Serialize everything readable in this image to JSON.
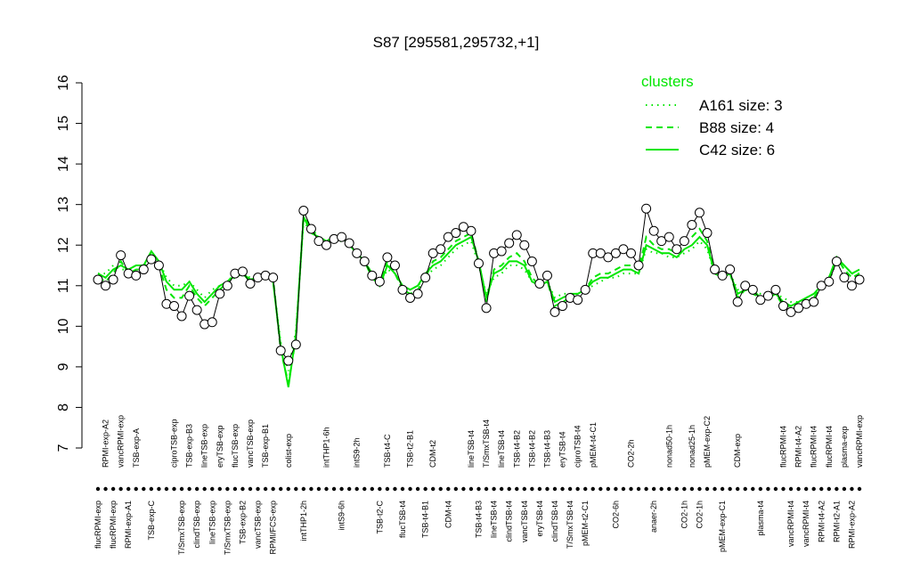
{
  "chart_data": {
    "type": "line",
    "title": "S87 [295581,295732,+1]",
    "categories": [
      "flucRPMI-exp",
      "RPMI-exp-A2",
      "flucRPMI-exp",
      "vancRPMI-exp",
      "RPMI-exp-A1",
      "TSB-exp-A",
      null,
      "TSB-exp-C",
      null,
      null,
      "ciproTSB-exp",
      "T/SmxTSB-exp",
      "TSB-exp-B3",
      "clindTSB-exp",
      "lineTSB-exp",
      "lineTSB-exp",
      "eryTSB-exp",
      "T/SmxTSB-exp",
      "flucTSB-exp",
      "TSB-exp-B2",
      "vancTSB-exp",
      "vancTSB-exp",
      "TSB-exp-B1",
      "RPMI/FCS-exp",
      null,
      "colist-exp",
      null,
      "intTHP1-2h",
      null,
      null,
      "intTHP1-6h",
      null,
      "intS9-6h",
      null,
      "intS9-2h",
      null,
      null,
      "TSB-t2-C",
      "TSB-t4-C",
      null,
      "flucTSB-t4",
      "TSB-t2-B1",
      null,
      "TSB-t4-B1",
      "CDM-t2",
      null,
      "CDM-t4",
      null,
      null,
      "lineTSB-t4",
      "TSB-t4-B3",
      "T/SmxTSB-t4",
      "lineTSB-t4",
      "lineTSB-t4",
      "clindTSB-t4",
      "TSB-t4-B2",
      "vancTSB-t4",
      "TSB-t4-B2",
      "eryTSB-t4",
      "TSB-t4-B3",
      "clindTSB-t4",
      "eryTSB-t4",
      "T/SmxTSB-t4",
      "ciproTSB-t4",
      "pMEM-t2-C1",
      "pMEM-t4-C1",
      null,
      null,
      "CO2-6h",
      null,
      "CO2-2h",
      null,
      null,
      "anaer-2h",
      null,
      "nonad50-1h",
      null,
      "CO2-1h",
      "nonad25-1h",
      "CO2-1h",
      "pMEM-exp-C2",
      null,
      "pMEM-exp-C1",
      null,
      "CDM-exp",
      null,
      null,
      "plasma-t4",
      null,
      null,
      "flucRPMI-t4",
      "vancRPMI-t4",
      "RPMI-t4-A2",
      "vancRPMI-t4",
      "flucRPMI-t4",
      "RPMI-t4-A2",
      "flucRPMI-t4",
      "RPMI-t2-A1",
      "plasma-exp",
      "RPMI-exp-A2",
      "vancRPMI-exp"
    ],
    "values": [
      11.15,
      11.0,
      11.15,
      11.75,
      11.3,
      11.25,
      11.4,
      11.65,
      11.5,
      10.55,
      10.5,
      10.25,
      10.75,
      10.4,
      10.05,
      10.1,
      10.8,
      11.0,
      11.3,
      11.35,
      11.05,
      11.2,
      11.25,
      11.2,
      9.4,
      9.15,
      9.55,
      12.85,
      12.4,
      12.1,
      12.0,
      12.15,
      12.2,
      12.05,
      11.8,
      11.6,
      11.25,
      11.1,
      11.7,
      11.5,
      10.9,
      10.7,
      10.8,
      11.2,
      11.8,
      11.9,
      12.2,
      12.3,
      12.45,
      12.35,
      11.55,
      10.45,
      11.8,
      11.85,
      12.05,
      12.25,
      12.0,
      11.6,
      11.05,
      11.25,
      10.35,
      10.5,
      10.7,
      10.65,
      10.9,
      11.8,
      11.8,
      11.7,
      11.8,
      11.9,
      11.8,
      11.5,
      12.9,
      12.35,
      12.1,
      12.2,
      11.9,
      12.1,
      12.5,
      12.8,
      12.3,
      11.4,
      11.25,
      11.4,
      10.6,
      11.0,
      10.9,
      10.65,
      10.75,
      10.9,
      10.5,
      10.35,
      10.45,
      10.55,
      10.6,
      11.0,
      11.1,
      11.6,
      11.2,
      11.0,
      11.15
    ],
    "series": [
      {
        "name": "A161 size: 3",
        "color": "#00e600",
        "dash": "dotted",
        "values": [
          11.3,
          11.3,
          11.5,
          11.4,
          11.4,
          11.5,
          11.5,
          11.8,
          11.6,
          11.2,
          11.0,
          11.0,
          11.1,
          10.9,
          10.7,
          10.9,
          11.0,
          11.1,
          11.2,
          11.3,
          11.2,
          11.2,
          11.2,
          11.1,
          9.6,
          8.9,
          9.9,
          12.6,
          12.3,
          12.2,
          12.1,
          12.1,
          12.1,
          12.0,
          11.8,
          11.6,
          11.2,
          11.0,
          11.4,
          11.3,
          11.0,
          10.9,
          11.0,
          11.2,
          11.4,
          11.5,
          11.7,
          11.9,
          12.0,
          12.1,
          11.5,
          10.8,
          11.2,
          11.3,
          11.5,
          11.5,
          11.4,
          11.1,
          11.0,
          11.1,
          10.7,
          10.8,
          10.8,
          10.8,
          10.9,
          11.0,
          11.1,
          11.2,
          11.2,
          11.3,
          11.3,
          11.3,
          11.9,
          11.8,
          11.8,
          11.7,
          11.7,
          11.8,
          11.9,
          12.1,
          11.9,
          11.3,
          11.2,
          11.3,
          10.9,
          10.9,
          10.9,
          10.8,
          10.7,
          10.8,
          10.7,
          10.6,
          10.6,
          10.7,
          10.8,
          11.0,
          11.1,
          11.6,
          11.5,
          11.3,
          11.3
        ]
      },
      {
        "name": "B88 size: 4",
        "color": "#00e600",
        "dash": "dashed",
        "values": [
          11.2,
          11.1,
          11.3,
          11.6,
          11.3,
          11.4,
          11.4,
          11.8,
          11.5,
          10.9,
          10.7,
          10.7,
          11.0,
          10.7,
          10.5,
          10.7,
          10.9,
          11.1,
          11.3,
          11.3,
          11.1,
          11.2,
          11.3,
          11.2,
          9.4,
          8.6,
          9.7,
          12.8,
          12.4,
          12.2,
          12.1,
          12.2,
          12.2,
          12.0,
          11.8,
          11.6,
          11.3,
          11.0,
          11.6,
          11.3,
          10.9,
          10.8,
          10.9,
          11.2,
          11.6,
          11.7,
          11.9,
          12.1,
          12.2,
          12.3,
          11.6,
          10.6,
          11.4,
          11.5,
          11.7,
          11.8,
          11.6,
          11.2,
          11.0,
          11.1,
          10.5,
          10.6,
          10.7,
          10.7,
          10.9,
          11.2,
          11.3,
          11.3,
          11.4,
          11.5,
          11.5,
          11.4,
          12.2,
          12.0,
          11.9,
          11.9,
          11.8,
          12.0,
          12.2,
          12.4,
          12.1,
          11.4,
          11.2,
          11.3,
          10.7,
          10.9,
          10.8,
          10.7,
          10.7,
          10.8,
          10.5,
          10.5,
          10.5,
          10.6,
          10.7,
          11.0,
          11.2,
          11.7,
          11.4,
          11.2,
          11.3
        ]
      },
      {
        "name": "C42 size: 6",
        "color": "#00e600",
        "dash": "solid",
        "values": [
          11.3,
          11.2,
          11.4,
          11.5,
          11.4,
          11.5,
          11.5,
          11.85,
          11.6,
          11.1,
          10.9,
          10.9,
          11.1,
          10.8,
          10.6,
          10.8,
          11.0,
          11.1,
          11.25,
          11.3,
          11.15,
          11.2,
          11.25,
          11.1,
          9.5,
          8.5,
          9.8,
          12.7,
          12.3,
          12.2,
          12.1,
          12.2,
          12.2,
          12.0,
          11.8,
          11.6,
          11.2,
          11.0,
          11.5,
          11.3,
          11.0,
          10.9,
          11.0,
          11.3,
          11.5,
          11.6,
          11.8,
          12.0,
          12.1,
          12.2,
          11.6,
          10.7,
          11.3,
          11.4,
          11.6,
          11.6,
          11.5,
          11.1,
          11.0,
          11.1,
          10.6,
          10.7,
          10.8,
          10.8,
          10.9,
          11.1,
          11.2,
          11.2,
          11.3,
          11.4,
          11.4,
          11.3,
          12.0,
          11.9,
          11.8,
          11.8,
          11.7,
          11.9,
          12.0,
          12.2,
          12.0,
          11.3,
          11.2,
          11.3,
          10.8,
          10.9,
          10.9,
          10.7,
          10.7,
          10.8,
          10.6,
          10.5,
          10.6,
          10.7,
          10.8,
          11.0,
          11.2,
          11.7,
          11.5,
          11.3,
          11.4
        ]
      }
    ],
    "legend_title": "clusters",
    "legend": "topright",
    "ylim": [
      7,
      16
    ],
    "yticks": [
      7,
      8,
      9,
      10,
      11,
      12,
      13,
      14,
      15,
      16
    ]
  }
}
